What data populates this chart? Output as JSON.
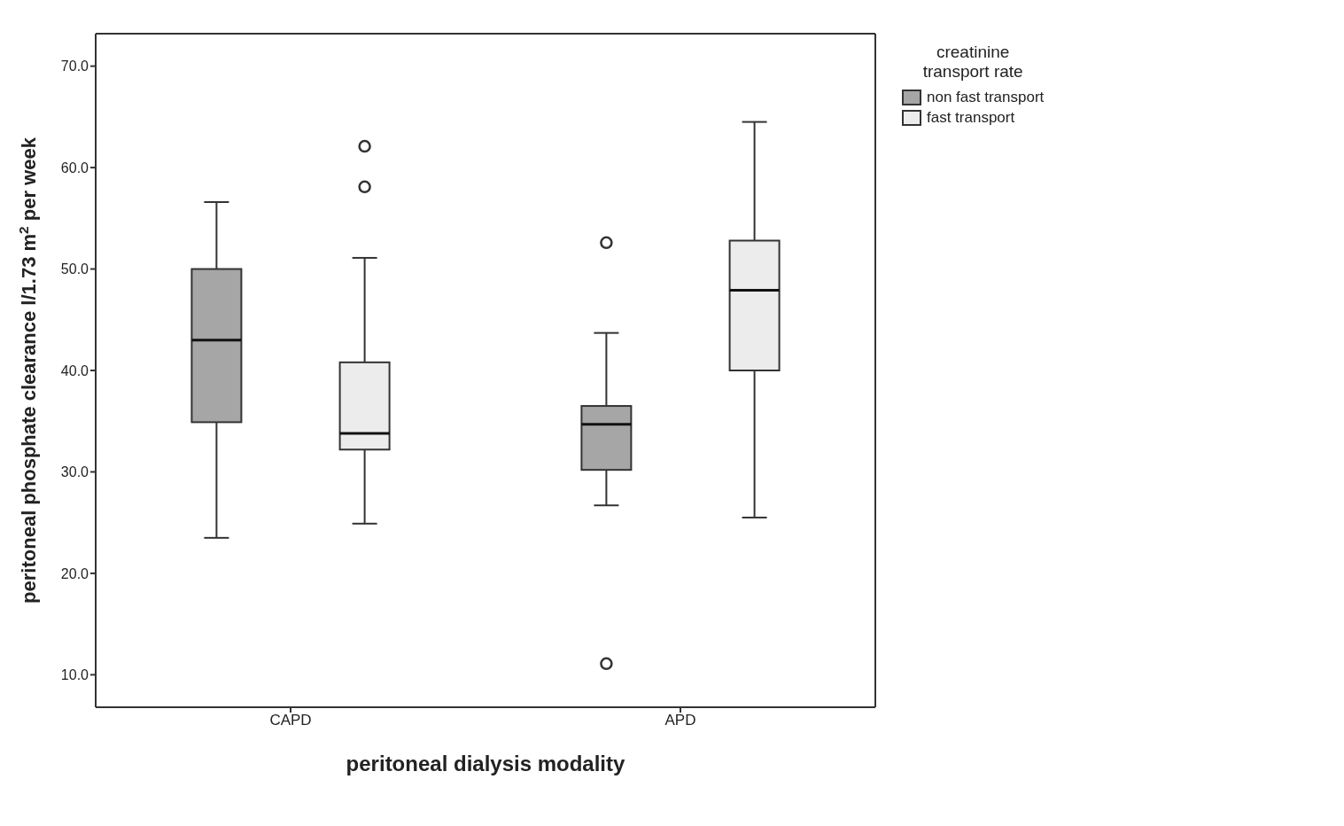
{
  "chart_data": {
    "type": "box",
    "xlabel": "peritoneal dialysis modality",
    "ylabel": "peritoneal phosphate clearance l/1.73 m$^{2}$ per week",
    "legend_title": "creatinine transport rate",
    "legend": "top right",
    "categories": [
      "CAPD",
      "APD"
    ],
    "ylim": [
      6.8,
      73.2
    ],
    "yticks": [
      {
        "value": 10,
        "label": "10.0"
      },
      {
        "value": 20,
        "label": "20.0"
      },
      {
        "value": 30,
        "label": "30.0"
      },
      {
        "value": 40,
        "label": "40.0"
      },
      {
        "value": 50,
        "label": "50.0"
      },
      {
        "value": 60,
        "label": "60.0"
      },
      {
        "value": 70,
        "label": "70.0"
      }
    ],
    "series": [
      {
        "name": "non fast transport",
        "color": "#a6a6a6",
        "boxes": [
          {
            "low": 23.5,
            "q1": 34.9,
            "median": 43.0,
            "q3": 50.0,
            "high": 56.6
          },
          {
            "low": 26.7,
            "q1": 30.2,
            "median": 34.7,
            "q3": 36.5,
            "high": 43.7,
            "outliers": [
              52.6,
              11.1
            ]
          }
        ]
      },
      {
        "name": "fast transport",
        "color": "#ececec",
        "boxes": [
          {
            "low": 24.9,
            "q1": 32.2,
            "median": 33.8,
            "q3": 40.8,
            "high": 51.1,
            "outliers": [
              62.1,
              58.1
            ]
          },
          {
            "low": 25.5,
            "q1": 40.0,
            "median": 47.9,
            "q3": 52.8,
            "high": 64.5
          }
        ]
      }
    ]
  }
}
